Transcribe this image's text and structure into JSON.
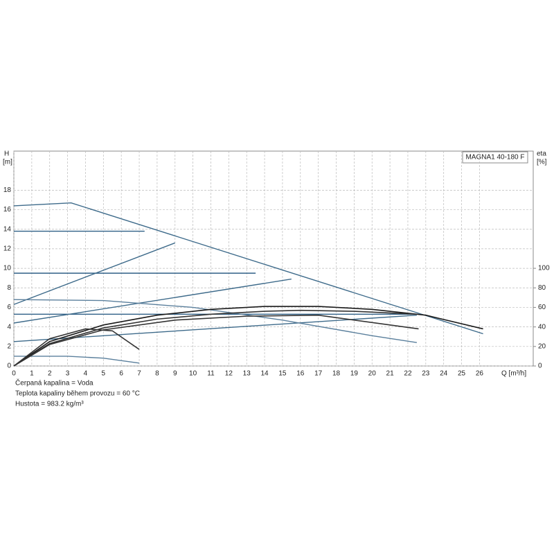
{
  "chart_data": {
    "type": "line",
    "title": "MAGNA1 40-180 F",
    "y_label": "H",
    "y_unit": "[m]",
    "y2_label": "eta",
    "y2_unit": "[%]",
    "x_label": "Q [m³/h]",
    "notes": [
      "Čerpaná kapalina = Voda",
      "Teplota kapaliny během provozu = 60 °C",
      "Hustota = 983.2 kg/m³"
    ],
    "xlim": [
      0,
      29
    ],
    "ylim": [
      0,
      22
    ],
    "y2lim": [
      0,
      220
    ],
    "xticks": [
      0,
      1,
      2,
      3,
      4,
      5,
      6,
      7,
      8,
      9,
      10,
      11,
      12,
      13,
      14,
      15,
      16,
      17,
      18,
      19,
      20,
      21,
      22,
      23,
      24,
      25,
      26
    ],
    "yticks": [
      0,
      2,
      4,
      6,
      8,
      10,
      12,
      14,
      16,
      18
    ],
    "y2ticks": [
      0,
      20,
      40,
      60,
      80,
      100
    ],
    "grid": true,
    "series": [
      {
        "color": "#3d6a8a",
        "x": [
          0,
          3.2,
          26.2
        ],
        "values": [
          16.4,
          16.7,
          3.3
        ]
      },
      {
        "color": "#2e5f86",
        "x": [
          0,
          7.3
        ],
        "values": [
          13.8,
          13.8
        ]
      },
      {
        "color": "#2e5f86",
        "x": [
          0,
          13.5
        ],
        "values": [
          9.5,
          9.5
        ]
      },
      {
        "color": "#2e5f86",
        "x": [
          0,
          22.5
        ],
        "values": [
          5.3,
          5.3
        ]
      },
      {
        "color": "#3d6a8a",
        "x": [
          0,
          9
        ],
        "values": [
          6.3,
          12.6
        ]
      },
      {
        "color": "#3d6a8a",
        "x": [
          0,
          15.5
        ],
        "values": [
          4.4,
          8.9
        ]
      },
      {
        "color": "#3d6a8a",
        "x": [
          0,
          22.5
        ],
        "values": [
          2.5,
          5.2
        ]
      },
      {
        "color": "#5a7f9c",
        "x": [
          0,
          5,
          10,
          15,
          20,
          22.5
        ],
        "values": [
          6.8,
          6.7,
          6.0,
          4.7,
          3.1,
          2.4
        ]
      },
      {
        "color": "#5a7f9c",
        "x": [
          0,
          3,
          5,
          7
        ],
        "values": [
          1.0,
          1.0,
          0.8,
          0.3
        ]
      },
      {
        "color": "#1a1a1a",
        "axis": "y2",
        "x": [
          0,
          2,
          5,
          8,
          11,
          14,
          17,
          20,
          23,
          26.2
        ],
        "values": [
          0,
          25,
          42,
          52,
          58,
          61,
          61,
          58,
          52,
          38
        ]
      },
      {
        "color": "#333333",
        "axis": "y2",
        "x": [
          0,
          2,
          5,
          8,
          11,
          14,
          16,
          19,
          22.5
        ],
        "values": [
          0,
          23,
          39,
          48,
          53,
          56,
          57,
          56,
          53
        ]
      },
      {
        "color": "#333333",
        "axis": "y2",
        "x": [
          0,
          2,
          5,
          9,
          13,
          17,
          22.6
        ],
        "values": [
          0,
          22,
          37,
          47,
          51,
          52,
          38
        ]
      },
      {
        "color": "#333333",
        "axis": "y2",
        "x": [
          0,
          2,
          4,
          5.5,
          7
        ],
        "values": [
          0,
          28,
          38,
          36,
          17
        ]
      }
    ]
  }
}
